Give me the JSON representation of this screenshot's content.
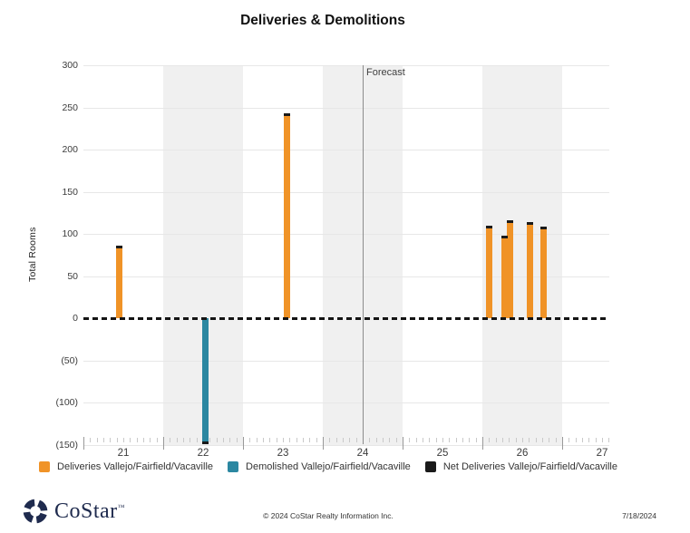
{
  "page": {
    "title": "Deliveries & Demolitions"
  },
  "chart_data": {
    "type": "bar",
    "title": "Deliveries & Demolitions",
    "ylabel": "Total Rooms",
    "xlabel": "",
    "ylim": [
      -150,
      300
    ],
    "ytick_values": [
      300,
      250,
      200,
      150,
      100,
      50,
      0,
      -50,
      -100,
      -150
    ],
    "ytick_labels": [
      "300",
      "250",
      "200",
      "150",
      "100",
      "50",
      "0",
      "(50)",
      "(100)",
      "(150)"
    ],
    "xtick_labels": [
      "21",
      "22",
      "23",
      "24",
      "25",
      "26",
      "27"
    ],
    "x_range": [
      21,
      27.6
    ],
    "shaded_years": [
      "22",
      "24",
      "26"
    ],
    "grid": "horizontal",
    "zero_line": "dashed-black",
    "legend_position": "bottom",
    "forecast_label": "Forecast",
    "forecast_x": 24.5,
    "colors": {
      "deliveries": "#F09327",
      "demolished": "#2B87A1",
      "net": "#1A1A1A",
      "stripe": "#F0F0F0",
      "gridline": "#E7E7E7",
      "tick_minor": "#C9C9C9",
      "tick_major": "#999999",
      "forecast_line": "#8C8C8C"
    },
    "series": [
      {
        "name": "Deliveries Vallejo/Fairfield/Vacaville",
        "type": "bar",
        "color_key": "deliveries",
        "points": [
          {
            "x": 21.45,
            "y": 84
          },
          {
            "x": 23.55,
            "y": 241
          },
          {
            "x": 26.09,
            "y": 108
          },
          {
            "x": 26.28,
            "y": 96
          },
          {
            "x": 26.35,
            "y": 114
          },
          {
            "x": 26.6,
            "y": 112
          },
          {
            "x": 26.77,
            "y": 107
          }
        ]
      },
      {
        "name": "Demolished Vallejo/Fairfield/Vacaville",
        "type": "bar",
        "color_key": "demolished",
        "points": [
          {
            "x": 22.53,
            "y": -148
          }
        ]
      },
      {
        "name": "Net Deliveries Vallejo/Fairfield/Vacaville",
        "type": "dash-marker",
        "color_key": "net",
        "points": [
          {
            "x": 21.45,
            "y": 84
          },
          {
            "x": 22.53,
            "y": -148
          },
          {
            "x": 23.55,
            "y": 241
          },
          {
            "x": 26.09,
            "y": 108
          },
          {
            "x": 26.28,
            "y": 96
          },
          {
            "x": 26.35,
            "y": 114
          },
          {
            "x": 26.6,
            "y": 112
          },
          {
            "x": 26.77,
            "y": 107
          }
        ]
      }
    ]
  },
  "footer": {
    "brand": "CoStar",
    "trademark": "™",
    "copyright": "© 2024 CoStar Realty Information Inc.",
    "date": "7/18/2024"
  }
}
